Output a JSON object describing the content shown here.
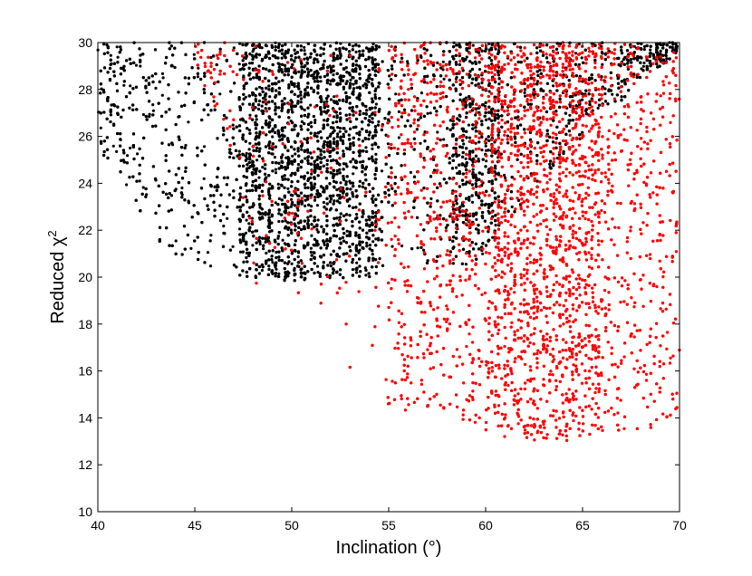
{
  "chart_data": {
    "type": "scatter",
    "title": "",
    "xlabel": "Inclination (°)",
    "ylabel_main": "Reduced χ",
    "ylabel_sup": "2",
    "xlim": [
      40,
      70
    ],
    "ylim": [
      10,
      30
    ],
    "xticks": [
      40,
      45,
      50,
      55,
      60,
      65,
      70
    ],
    "yticks": [
      10,
      12,
      14,
      16,
      18,
      20,
      22,
      24,
      26,
      28,
      30
    ],
    "grid": false,
    "legend": "none",
    "series": [
      {
        "color": "#000000",
        "x_range": [
          40,
          70
        ],
        "min_chi2_by_inclination": [
          [
            40,
            24.5
          ],
          [
            41,
            24.6
          ],
          [
            42,
            23
          ],
          [
            43,
            21.5
          ],
          [
            44,
            20.8
          ],
          [
            45,
            20.5
          ],
          [
            46,
            20.3
          ],
          [
            47,
            20.1
          ],
          [
            48,
            20
          ],
          [
            49,
            19.9
          ],
          [
            50,
            19.8
          ],
          [
            51,
            19.8
          ],
          [
            52,
            19.9
          ],
          [
            53,
            20
          ],
          [
            54,
            20
          ],
          [
            55,
            20.2
          ],
          [
            56,
            21
          ],
          [
            57,
            20.5
          ],
          [
            58,
            20.5
          ],
          [
            59,
            20.5
          ],
          [
            60,
            21
          ],
          [
            61,
            22
          ],
          [
            62,
            23.2
          ],
          [
            63,
            24
          ],
          [
            64,
            25
          ],
          [
            65,
            26
          ],
          [
            66,
            27
          ],
          [
            67,
            27.5
          ],
          [
            68,
            28.5
          ],
          [
            69,
            29
          ],
          [
            70,
            29.5
          ]
        ]
      },
      {
        "color": "#ff0000",
        "x_range": [
          45,
          70
        ],
        "min_chi2_by_inclination": [
          [
            45,
            29
          ],
          [
            47,
            25
          ],
          [
            48,
            19.5
          ],
          [
            49,
            18
          ],
          [
            50,
            18.5
          ],
          [
            51,
            18.8
          ],
          [
            52,
            18.2
          ],
          [
            53,
            15.3
          ],
          [
            54,
            16
          ],
          [
            55,
            14.5
          ],
          [
            56,
            14.3
          ],
          [
            57,
            14.2
          ],
          [
            58,
            14
          ],
          [
            59,
            13.6
          ],
          [
            60,
            13.4
          ],
          [
            61,
            13.2
          ],
          [
            62,
            13.1
          ],
          [
            63,
            13
          ],
          [
            64,
            13
          ],
          [
            65,
            13.1
          ],
          [
            66,
            13.3
          ],
          [
            67,
            13.4
          ],
          [
            68,
            13.5
          ],
          [
            69,
            13.5
          ],
          [
            70,
            13.5
          ]
        ]
      }
    ]
  }
}
